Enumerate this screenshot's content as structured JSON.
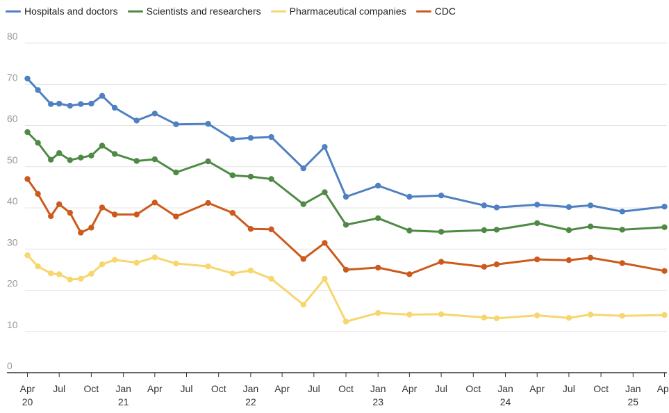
{
  "chart_data": {
    "type": "line",
    "title": "",
    "xlabel": "",
    "ylabel": "",
    "ylim": [
      0,
      80
    ],
    "y_ticks": [
      "0",
      "10",
      "20",
      "30",
      "40",
      "50",
      "60",
      "70",
      "80"
    ],
    "x_ticks": [
      {
        "month": "2020-04",
        "label": "Apr",
        "sub": "20"
      },
      {
        "month": "2020-07",
        "label": "Jul",
        "sub": ""
      },
      {
        "month": "2020-10",
        "label": "Oct",
        "sub": ""
      },
      {
        "month": "2021-01",
        "label": "Jan",
        "sub": "21"
      },
      {
        "month": "2021-04",
        "label": "Apr",
        "sub": ""
      },
      {
        "month": "2021-07",
        "label": "Jul",
        "sub": ""
      },
      {
        "month": "2021-10",
        "label": "Oct",
        "sub": ""
      },
      {
        "month": "2022-01",
        "label": "Jan",
        "sub": "22"
      },
      {
        "month": "2022-04",
        "label": "Apr",
        "sub": ""
      },
      {
        "month": "2022-07",
        "label": "Jul",
        "sub": ""
      },
      {
        "month": "2022-10",
        "label": "Oct",
        "sub": ""
      },
      {
        "month": "2023-01",
        "label": "Jan",
        "sub": "23"
      },
      {
        "month": "2023-04",
        "label": "Apr",
        "sub": ""
      },
      {
        "month": "2023-07",
        "label": "Jul",
        "sub": ""
      },
      {
        "month": "2023-10",
        "label": "Oct",
        "sub": ""
      },
      {
        "month": "2024-01",
        "label": "Jan",
        "sub": "24"
      },
      {
        "month": "2024-04",
        "label": "Apr",
        "sub": ""
      },
      {
        "month": "2024-07",
        "label": "Jul",
        "sub": ""
      },
      {
        "month": "2024-10",
        "label": "Oct",
        "sub": ""
      },
      {
        "month": "2025-01",
        "label": "Jan",
        "sub": "25"
      },
      {
        "month": "2025-04",
        "label": "Apr",
        "sub": ""
      }
    ],
    "x": [
      "2020-04-01",
      "2020-05-01",
      "2020-06-07",
      "2020-07-01",
      "2020-08-01",
      "2020-09-01",
      "2020-10-01",
      "2020-11-01",
      "2020-12-07",
      "2021-02-08",
      "2021-04-01",
      "2021-06-01",
      "2021-09-01",
      "2021-11-10",
      "2022-01-01",
      "2022-03-01",
      "2022-06-01",
      "2022-08-01",
      "2022-10-01",
      "2023-01-01",
      "2023-04-01",
      "2023-07-01",
      "2023-11-01",
      "2023-12-07",
      "2024-04-01",
      "2024-07-01",
      "2024-09-01",
      "2024-12-01",
      "2025-04-01"
    ],
    "series": [
      {
        "name": "Hospitals and doctors",
        "color": "#4e80c2",
        "values": [
          71.4,
          68.6,
          65.2,
          65.3,
          64.8,
          65.2,
          65.3,
          67.2,
          64.3,
          61.2,
          62.9,
          60.3,
          60.4,
          56.7,
          57.0,
          57.2,
          49.6,
          54.8,
          42.7,
          45.4,
          42.7,
          43.0,
          40.6,
          40.1,
          40.8,
          40.2,
          40.6,
          39.1,
          40.3
        ]
      },
      {
        "name": "Scientists and researchers",
        "color": "#4f8a45",
        "values": [
          58.4,
          55.8,
          51.7,
          53.3,
          51.6,
          52.2,
          52.7,
          55.1,
          53.1,
          51.4,
          51.8,
          48.6,
          51.3,
          47.9,
          47.6,
          47.0,
          40.9,
          43.8,
          35.9,
          37.5,
          34.5,
          34.2,
          34.6,
          34.7,
          36.3,
          34.6,
          35.5,
          34.7,
          35.3
        ]
      },
      {
        "name": "Pharmaceutical companies",
        "color": "#f7d66d",
        "values": [
          28.5,
          25.8,
          24.1,
          23.9,
          22.6,
          22.8,
          24.0,
          26.3,
          27.4,
          26.7,
          28.0,
          26.5,
          25.8,
          24.1,
          24.8,
          22.8,
          16.5,
          22.8,
          12.4,
          14.5,
          14.1,
          14.2,
          13.4,
          13.2,
          13.9,
          13.3,
          14.1,
          13.8,
          14.0
        ]
      },
      {
        "name": "CDC",
        "color": "#cc5a1d",
        "values": [
          47.0,
          43.4,
          38.0,
          40.9,
          38.8,
          34.0,
          35.2,
          40.1,
          38.4,
          38.4,
          41.3,
          37.9,
          41.2,
          38.8,
          34.9,
          34.8,
          27.6,
          31.5,
          25.0,
          25.5,
          23.9,
          26.9,
          25.7,
          26.3,
          27.5,
          27.3,
          27.9,
          26.6,
          24.7
        ]
      }
    ],
    "legend_position": "top-left",
    "grid": true
  }
}
